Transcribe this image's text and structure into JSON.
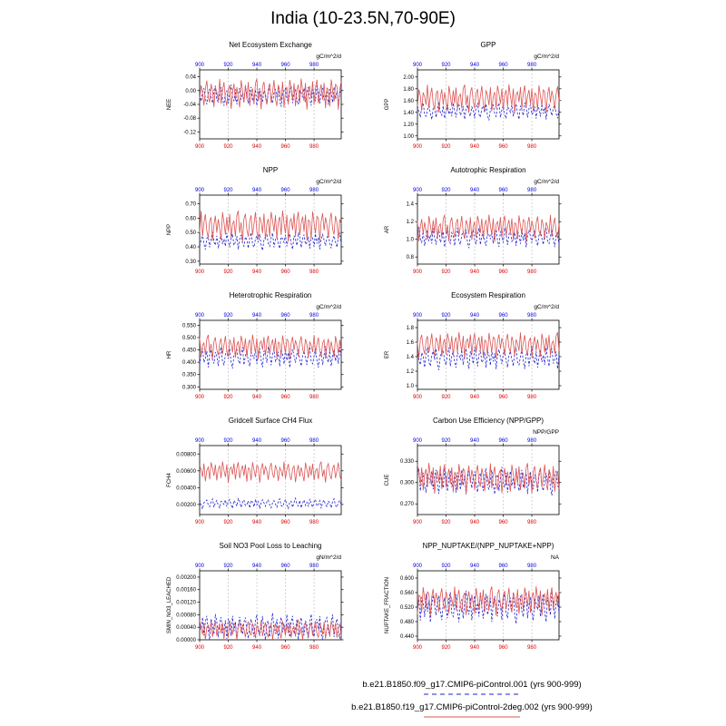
{
  "figure_title": "India (10-23.5N,70-90E)",
  "legend": [
    {
      "label": "b.e21.B1850.f09_g17.CMIP6-piControl.001 (yrs 900-999)",
      "color": "#2222cc",
      "style": "dashed"
    },
    {
      "label": "b.e21.B1850.f19_g17.CMIP6-piControl-2deg.002 (yrs 900-999)",
      "color": "#dd5555",
      "style": "solid"
    }
  ],
  "chart_data": {
    "type": "line",
    "x_start": 900,
    "x_end": 999,
    "x_ticks": [
      900,
      920,
      940,
      960,
      980
    ],
    "top_axis_color": "#0000dd",
    "bottom_axis_color": "#dd0000",
    "grid": true,
    "noise": {
      "blue": [
        0.12,
        -0.45,
        0.31,
        0.62,
        -0.22,
        -0.71,
        0.18,
        0.52,
        -0.08,
        -0.61,
        0.44,
        0.82,
        -0.33,
        -0.52,
        0.11,
        0.71,
        -0.24,
        -0.83,
        0.28,
        0.41,
        -0.62,
        0.21,
        0.91,
        -0.12,
        -0.41,
        0.53,
        -0.72,
        0.08,
        0.63,
        -0.31,
        0.22,
        -0.52,
        0.81,
        0.02,
        -0.63,
        0.33,
        0.72,
        -0.42,
        -0.11,
        0.51,
        -0.82,
        0.19,
        0.61,
        -0.21,
        -0.51,
        0.42,
        0.12,
        -0.71,
        0.32,
        0.83,
        -0.32,
        -0.61,
        0.23,
        0.52,
        -0.13,
        0.71,
        -0.43,
        -0.92,
        0.14,
        0.43,
        0.62,
        -0.23,
        -0.53,
        0.34,
        0.81,
        -0.62,
        0.13,
        0.54,
        -0.33,
        -0.73,
        0.41,
        0.24,
        -0.14,
        0.63,
        -0.52,
        0.35,
        0.72,
        -0.25,
        -0.81,
        0.53,
        0.15,
        -0.44,
        0.84,
        0.36,
        -0.64,
        0.25,
        0.64,
        -0.34,
        -0.15,
        0.45,
        -0.74,
        0.55,
        0.26,
        -0.55,
        0.73,
        -0.26,
        0.37,
        -0.84,
        0.16,
        0.66
      ],
      "red": [
        -0.21,
        0.54,
        0.12,
        -0.63,
        0.35,
        0.82,
        -0.14,
        -0.45,
        0.63,
        0.22,
        -0.72,
        0.43,
        0.15,
        -0.34,
        0.92,
        -0.53,
        0.24,
        0.73,
        -0.25,
        -0.64,
        0.32,
        0.55,
        -0.83,
        0.13,
        0.64,
        -0.35,
        0.44,
        -0.15,
        -0.74,
        0.84,
        0.25,
        -0.46,
        0.56,
        -0.26,
        0.74,
        -0.65,
        0.16,
        0.33,
        -0.56,
        0.65,
        0.93,
        -0.36,
        0.26,
        -0.85,
        0.45,
        0.75,
        -0.16,
        -0.57,
        0.34,
        0.66,
        -0.47,
        0.17,
        0.85,
        -0.27,
        -0.66,
        0.57,
        0.27,
        -0.37,
        0.76,
        -0.75,
        0.18,
        0.46,
        -0.58,
        0.86,
        0.36,
        -0.28,
        0.67,
        -0.67,
        0.28,
        0.58,
        -0.48,
        0.94,
        0.19,
        -0.38,
        0.68,
        -0.86,
        0.29,
        0.47,
        -0.18,
        0.77,
        -0.59,
        0.38,
        0.87,
        -0.49,
        0.2,
        0.59,
        -0.29,
        0.69,
        -0.78,
        0.39,
        0.3,
        -0.68,
        0.88,
        0.21,
        -0.39,
        0.6,
        0.49,
        -0.87,
        0.31,
        0.78
      ]
    },
    "charts": [
      {
        "title": "Net Ecosystem Exchange",
        "ylabel": "NEE",
        "units": "gC/m^2/d",
        "ylim": [
          -0.14,
          0.06
        ],
        "ytick_values": [
          0.04,
          0,
          -0.04,
          -0.08,
          -0.12
        ],
        "ytick_labels": [
          "0.04",
          "0.00",
          "-0.04",
          "-0.08",
          "-0.12"
        ],
        "phase": 0,
        "series": [
          {
            "legend": 0,
            "noise": "blue",
            "mean": -0.015,
            "amplitude": 0.035
          },
          {
            "legend": 1,
            "noise": "red",
            "mean": -0.012,
            "amplitude": 0.05
          }
        ]
      },
      {
        "title": "GPP",
        "ylabel": "GPP",
        "units": "gC/m^2/d",
        "ylim": [
          0.95,
          2.12
        ],
        "ytick_values": [
          2.0,
          1.8,
          1.6,
          1.4,
          1.2,
          1.0
        ],
        "ytick_labels": [
          "2.00",
          "1.80",
          "1.60",
          "1.40",
          "1.20",
          "1.00"
        ],
        "phase": 7,
        "series": [
          {
            "legend": 0,
            "noise": "blue",
            "mean": 1.42,
            "amplitude": 0.17
          },
          {
            "legend": 1,
            "noise": "red",
            "mean": 1.62,
            "amplitude": 0.27
          }
        ]
      },
      {
        "title": "NPP",
        "ylabel": "NPP",
        "units": "gC/m^2/d",
        "ylim": [
          0.28,
          0.76
        ],
        "ytick_values": [
          0.7,
          0.6,
          0.5,
          0.4,
          0.3
        ],
        "ytick_labels": [
          "0.70",
          "0.60",
          "0.50",
          "0.40",
          "0.30"
        ],
        "phase": 13,
        "series": [
          {
            "legend": 0,
            "noise": "blue",
            "mean": 0.44,
            "amplitude": 0.07
          },
          {
            "legend": 1,
            "noise": "red",
            "mean": 0.54,
            "amplitude": 0.12
          }
        ]
      },
      {
        "title": "Autotrophic Respiration",
        "ylabel": "AR",
        "units": "gC/m^2/d",
        "ylim": [
          0.72,
          1.5
        ],
        "ytick_values": [
          1.4,
          1.2,
          1.0,
          0.8
        ],
        "ytick_labels": [
          "1.4",
          "1.2",
          "1.0",
          "0.8"
        ],
        "phase": 21,
        "series": [
          {
            "legend": 0,
            "noise": "blue",
            "mean": 1.02,
            "amplitude": 0.13
          },
          {
            "legend": 1,
            "noise": "red",
            "mean": 1.12,
            "amplitude": 0.17
          }
        ]
      },
      {
        "title": "Heterotrophic Respiration",
        "ylabel": "HR",
        "units": "gC/m^2/d",
        "ylim": [
          0.29,
          0.57
        ],
        "ytick_values": [
          0.55,
          0.5,
          0.45,
          0.4,
          0.35,
          0.3
        ],
        "ytick_labels": [
          "0.550",
          "0.500",
          "0.450",
          "0.400",
          "0.350",
          "0.300"
        ],
        "phase": 34,
        "series": [
          {
            "legend": 0,
            "noise": "blue",
            "mean": 0.42,
            "amplitude": 0.05
          },
          {
            "legend": 1,
            "noise": "red",
            "mean": 0.46,
            "amplitude": 0.055
          }
        ]
      },
      {
        "title": "Ecosystem Respiration",
        "ylabel": "ER",
        "units": "gC/m^2/d",
        "ylim": [
          0.95,
          1.9
        ],
        "ytick_values": [
          1.8,
          1.6,
          1.4,
          1.2,
          1.0
        ],
        "ytick_labels": [
          "1.8",
          "1.6",
          "1.4",
          "1.2",
          "1.0"
        ],
        "phase": 42,
        "series": [
          {
            "legend": 0,
            "noise": "blue",
            "mean": 1.38,
            "amplitude": 0.18
          },
          {
            "legend": 1,
            "noise": "red",
            "mean": 1.55,
            "amplitude": 0.2
          }
        ]
      },
      {
        "title": "Gridcell Surface CH4 Flux",
        "ylabel": "FCH4",
        "units": "",
        "ylim": [
          0.0008,
          0.009
        ],
        "ytick_values": [
          0.008,
          0.006,
          0.004,
          0.002
        ],
        "ytick_labels": [
          "0.00800",
          "0.00600",
          "0.00400",
          "0.00200"
        ],
        "phase": 55,
        "series": [
          {
            "legend": 0,
            "noise": "blue",
            "mean": 0.0021,
            "amplitude": 0.0007
          },
          {
            "legend": 1,
            "noise": "red",
            "mean": 0.0058,
            "amplitude": 0.0014
          }
        ]
      },
      {
        "title": "Carbon Use Efficiency (NPP/GPP)",
        "ylabel": "CUE",
        "units": "NPP/GPP",
        "ylim": [
          0.255,
          0.352
        ],
        "ytick_values": [
          0.33,
          0.3,
          0.27
        ],
        "ytick_labels": [
          "0.330",
          "0.300",
          "0.270"
        ],
        "phase": 63,
        "series": [
          {
            "legend": 0,
            "noise": "blue",
            "mean": 0.302,
            "amplitude": 0.022
          },
          {
            "legend": 1,
            "noise": "red",
            "mean": 0.305,
            "amplitude": 0.024
          }
        ]
      },
      {
        "title": "Soil NO3 Pool Loss to Leaching",
        "ylabel": "SMIN_NO3_LEACHED",
        "units": "gN/m^2/d",
        "ylim": [
          0,
          0.0022
        ],
        "ytick_values": [
          0.002,
          0.0016,
          0.0012,
          0.0008,
          0.0004,
          0
        ],
        "ytick_labels": [
          "0.00200",
          "0.00160",
          "0.00120",
          "0.00080",
          "0.00040",
          "0.00000"
        ],
        "phase": 71,
        "series": [
          {
            "legend": 0,
            "noise": "blue",
            "mean": 0.0004,
            "amplitude": 0.0005
          },
          {
            "legend": 1,
            "noise": "red",
            "mean": 0.0003,
            "amplitude": 0.00035
          }
        ]
      },
      {
        "title": "NPP_NUPTAKE/(NPP_NUPTAKE+NPP)",
        "ylabel": "NUPTAKE_FRACTION",
        "units": "NA",
        "ylim": [
          0.43,
          0.62
        ],
        "ytick_values": [
          0.6,
          0.56,
          0.52,
          0.48,
          0.44
        ],
        "ytick_labels": [
          "0.600",
          "0.560",
          "0.520",
          "0.480",
          "0.440"
        ],
        "phase": 88,
        "series": [
          {
            "legend": 0,
            "noise": "blue",
            "mean": 0.52,
            "amplitude": 0.05
          },
          {
            "legend": 1,
            "noise": "red",
            "mean": 0.535,
            "amplitude": 0.045
          }
        ]
      }
    ]
  }
}
